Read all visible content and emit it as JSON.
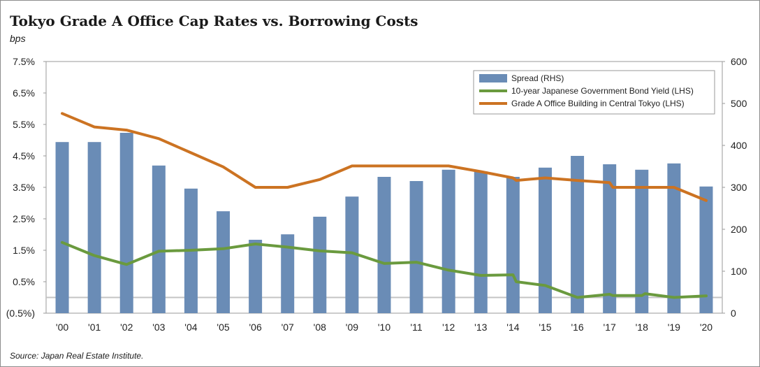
{
  "title": "Tokyo Grade A Office Cap Rates vs. Borrowing Costs",
  "unit_label": "bps",
  "source": "Source: Japan Real Estate Institute.",
  "chart_data": {
    "type": "bar+line",
    "categories": [
      "'00",
      "'01",
      "'02",
      "'03",
      "'04",
      "'05",
      "'06",
      "'07",
      "'08",
      "'09",
      "'10",
      "'11",
      "'12",
      "'13",
      "'14",
      "'15",
      "'16",
      "'17",
      "'18",
      "'19",
      "'20"
    ],
    "left_axis": {
      "min": -0.5,
      "max": 7.5,
      "tick_labels": [
        "(0.5%)",
        "0.5%",
        "1.5%",
        "2.5%",
        "3.5%",
        "4.5%",
        "5.5%",
        "6.5%",
        "7.5%"
      ]
    },
    "right_axis": {
      "min": 0,
      "max": 600,
      "tick_labels": [
        "0",
        "100",
        "200",
        "300",
        "400",
        "500",
        "600"
      ]
    },
    "zero_line": 0,
    "legend_position": "top-right",
    "series": [
      {
        "name": "Spread (RHS)",
        "type": "bar",
        "axis": "right",
        "color": "#6a8cb6",
        "values": [
          408,
          408,
          430,
          352,
          297,
          243,
          175,
          188,
          230,
          278,
          325,
          315,
          342,
          338,
          325,
          347,
          375,
          355,
          342,
          357,
          302
        ]
      },
      {
        "name": "10-year Japanese Government Bond Yield (LHS)",
        "type": "line",
        "axis": "left",
        "color": "#6a9a3e",
        "x": [
          0,
          1,
          2,
          3,
          4,
          5,
          6,
          7,
          8,
          9,
          10,
          11,
          12,
          13,
          14,
          14.1,
          15,
          16,
          17,
          17.1,
          18,
          18.1,
          19,
          20
        ],
        "values": [
          1.75,
          1.33,
          1.05,
          1.47,
          1.5,
          1.55,
          1.7,
          1.6,
          1.48,
          1.42,
          1.08,
          1.12,
          0.87,
          0.7,
          0.72,
          0.5,
          0.38,
          0.0,
          0.1,
          0.06,
          0.06,
          0.12,
          0.0,
          0.05
        ]
      },
      {
        "name": "Grade A Office Building in Central Tokyo (LHS)",
        "type": "line",
        "axis": "left",
        "color": "#cc7322",
        "x": [
          0,
          1,
          2,
          3,
          4,
          5,
          6,
          7,
          8,
          9,
          10,
          11,
          12,
          13,
          14,
          14.1,
          15,
          16,
          17,
          17.1,
          18,
          19,
          20
        ],
        "values": [
          5.85,
          5.42,
          5.32,
          5.05,
          4.6,
          4.15,
          3.5,
          3.5,
          3.75,
          4.18,
          4.18,
          4.18,
          4.18,
          4.0,
          3.8,
          3.72,
          3.8,
          3.72,
          3.65,
          3.5,
          3.5,
          3.5,
          3.08
        ]
      }
    ]
  }
}
